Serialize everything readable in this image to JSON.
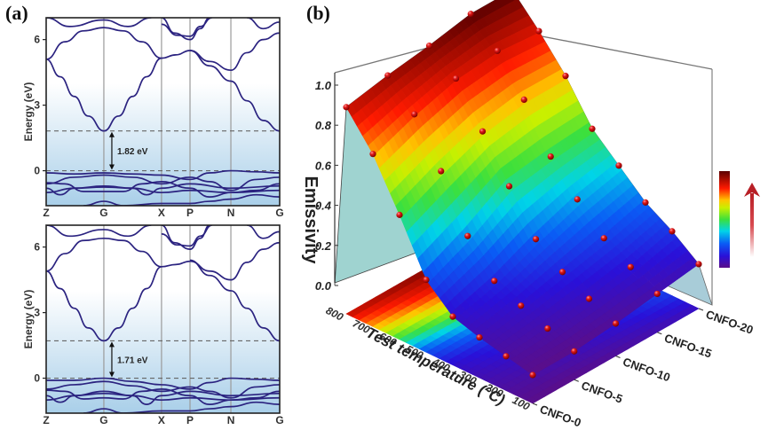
{
  "figure": {
    "panel_a_label": "(a)",
    "panel_b_label": "(b)"
  },
  "colors": {
    "band_line": "#2b2380",
    "band_bg_top": "#ffffff",
    "band_bg_bottom": "#a9cfe9",
    "kline": "#9a9a9a",
    "dash": "#666666",
    "wall": "#9fd3d0",
    "wall_right": "#a8ccd8",
    "point": "#d21c1c",
    "arrow": "#c0262b"
  },
  "chart_data": [
    {
      "type": "line",
      "id": "band-structure-top",
      "title": "",
      "ylabel": "Energy (eV)",
      "xlabel": "",
      "ylim": [
        -1.6,
        7.0
      ],
      "yticks": [
        "6",
        "3",
        "0"
      ],
      "ytick_values": [
        6,
        3,
        0
      ],
      "kpoints": [
        "Z",
        "G",
        "X",
        "P",
        "N",
        "G"
      ],
      "kpoint_positions": [
        0,
        0.247,
        0.494,
        0.616,
        0.791,
        1.0
      ],
      "band_gap_label": "1.82 eV",
      "band_gap": 1.82,
      "cbm": 1.82,
      "vbm": 0,
      "series": [
        {
          "name": "cb1",
          "x": [
            0,
            0.06,
            0.12,
            0.18,
            0.247,
            0.31,
            0.37,
            0.43,
            0.494,
            0.555,
            0.616,
            0.7,
            0.791,
            0.86,
            0.93,
            1.0
          ],
          "y": [
            5.1,
            4.3,
            3.4,
            2.5,
            1.82,
            2.5,
            3.4,
            4.3,
            5.15,
            5.3,
            5.5,
            5.0,
            4.6,
            5.4,
            6.0,
            6.3
          ]
        },
        {
          "name": "cb2",
          "x": [
            0.616,
            0.7,
            0.791,
            0.86,
            0.93,
            1.0
          ],
          "y": [
            5.5,
            4.8,
            4.1,
            3.2,
            2.3,
            1.82
          ]
        },
        {
          "name": "cb3",
          "x": [
            0,
            0.08,
            0.16,
            0.247,
            0.33,
            0.41,
            0.494
          ],
          "y": [
            5.1,
            5.9,
            6.4,
            6.55,
            6.4,
            5.9,
            5.15
          ]
        },
        {
          "name": "cb4",
          "x": [
            0.494,
            0.55,
            0.616,
            0.66,
            0.7
          ],
          "y": [
            7.0,
            6.3,
            6.0,
            6.5,
            7.0
          ]
        },
        {
          "name": "cb5",
          "x": [
            0.494,
            0.56,
            0.616,
            0.66,
            0.71
          ],
          "y": [
            6.7,
            6.2,
            6.15,
            6.6,
            7.0
          ]
        },
        {
          "name": "cb6",
          "x": [
            0.86,
            0.93,
            1.0
          ],
          "y": [
            7.0,
            6.5,
            6.8
          ]
        },
        {
          "name": "cb7",
          "x": [
            0.0,
            0.1,
            0.247,
            0.35,
            0.45
          ],
          "y": [
            7.0,
            6.6,
            6.9,
            6.6,
            7.0
          ]
        },
        {
          "name": "vb1",
          "x": [
            0,
            0.12,
            0.247,
            0.37,
            0.494,
            0.616,
            0.7,
            0.791,
            0.9,
            1.0
          ],
          "y": [
            -0.1,
            -0.15,
            -0.1,
            -0.15,
            -0.2,
            -0.4,
            -0.1,
            0.0,
            -0.05,
            -0.1
          ]
        },
        {
          "name": "vb2",
          "x": [
            0,
            0.12,
            0.247,
            0.37,
            0.494,
            0.616,
            0.7,
            0.791,
            0.9,
            1.0
          ],
          "y": [
            -0.6,
            -0.3,
            -0.2,
            -0.3,
            -0.6,
            -0.3,
            -0.5,
            -0.9,
            -0.4,
            -0.3
          ]
        },
        {
          "name": "vb3",
          "x": [
            0,
            0.06,
            0.12,
            0.247,
            0.37,
            0.43,
            0.494,
            0.616,
            0.791,
            1.0
          ],
          "y": [
            -0.8,
            -1.1,
            -0.8,
            -0.7,
            -0.8,
            -1.1,
            -0.8,
            -0.6,
            -0.8,
            -0.7
          ]
        },
        {
          "name": "vb4",
          "x": [
            0,
            0.12,
            0.247,
            0.37,
            0.494,
            0.616,
            0.791,
            1.0
          ],
          "y": [
            -1.0,
            -0.8,
            -0.75,
            -0.8,
            -1.0,
            -0.9,
            -1.0,
            -0.9
          ]
        },
        {
          "name": "vb5",
          "x": [
            0,
            0.08,
            0.16,
            0.247,
            0.33,
            0.41,
            0.494,
            0.616,
            0.7,
            0.791,
            0.9,
            1.0
          ],
          "y": [
            -0.55,
            -0.6,
            -0.95,
            -0.95,
            -0.95,
            -0.6,
            -0.5,
            -0.8,
            -1.2,
            -1.0,
            -0.9,
            -0.6
          ]
        },
        {
          "name": "vb6",
          "x": [
            0.16,
            0.247,
            0.33,
            0.494,
            0.616,
            0.7,
            0.791,
            0.9,
            1.0
          ],
          "y": [
            -1.6,
            -1.4,
            -1.6,
            -1.5,
            -1.5,
            -1.4,
            -1.3,
            -1.1,
            -1.2
          ]
        }
      ]
    },
    {
      "type": "line",
      "id": "band-structure-bottom",
      "title": "",
      "ylabel": "Energy (eV)",
      "xlabel": "",
      "ylim": [
        -1.6,
        7.0
      ],
      "yticks": [
        "6",
        "3",
        "0"
      ],
      "ytick_values": [
        6,
        3,
        0
      ],
      "kpoints": [
        "Z",
        "G",
        "X",
        "P",
        "N",
        "G"
      ],
      "kpoint_positions": [
        0,
        0.247,
        0.494,
        0.616,
        0.791,
        1.0
      ],
      "band_gap_label": "1.71 eV",
      "band_gap": 1.71,
      "cbm": 1.71,
      "vbm": 0,
      "series": [
        {
          "name": "cb1",
          "x": [
            0,
            0.06,
            0.12,
            0.18,
            0.247,
            0.31,
            0.37,
            0.43,
            0.494,
            0.555,
            0.616,
            0.7,
            0.791,
            0.86,
            0.93,
            1.0
          ],
          "y": [
            4.9,
            4.1,
            3.2,
            2.3,
            1.71,
            2.3,
            3.2,
            4.1,
            5.1,
            5.2,
            5.35,
            4.9,
            4.5,
            5.3,
            5.9,
            6.2
          ]
        },
        {
          "name": "cb2",
          "x": [
            0.616,
            0.7,
            0.791,
            0.86,
            0.93,
            1.0
          ],
          "y": [
            5.4,
            4.7,
            4.0,
            3.2,
            2.3,
            1.71
          ]
        },
        {
          "name": "cb3",
          "x": [
            0,
            0.08,
            0.16,
            0.247,
            0.33,
            0.41,
            0.494
          ],
          "y": [
            4.9,
            5.7,
            6.3,
            6.4,
            6.3,
            5.8,
            5.1
          ]
        },
        {
          "name": "cb4",
          "x": [
            0.494,
            0.55,
            0.616,
            0.66,
            0.7
          ],
          "y": [
            7.0,
            6.2,
            5.9,
            6.4,
            7.0
          ]
        },
        {
          "name": "cb5",
          "x": [
            0.494,
            0.56,
            0.616,
            0.66,
            0.71
          ],
          "y": [
            6.6,
            6.1,
            6.05,
            6.5,
            7.0
          ]
        },
        {
          "name": "cb6",
          "x": [
            0.86,
            0.93,
            1.0
          ],
          "y": [
            7.0,
            6.4,
            6.7
          ]
        },
        {
          "name": "cb7",
          "x": [
            0.0,
            0.1,
            0.247,
            0.35,
            0.45
          ],
          "y": [
            7.0,
            6.5,
            6.8,
            6.5,
            7.0
          ]
        },
        {
          "name": "vb1",
          "x": [
            0,
            0.12,
            0.247,
            0.37,
            0.494,
            0.616,
            0.7,
            0.791,
            0.9,
            1.0
          ],
          "y": [
            -0.1,
            -0.1,
            0.0,
            -0.15,
            -0.3,
            -0.5,
            -0.2,
            0.0,
            -0.05,
            -0.1
          ]
        },
        {
          "name": "vb2",
          "x": [
            0,
            0.12,
            0.247,
            0.37,
            0.494,
            0.616,
            0.7,
            0.791,
            0.9,
            1.0
          ],
          "y": [
            -0.5,
            -0.3,
            -0.15,
            -0.35,
            -0.6,
            -0.4,
            -0.6,
            -0.9,
            -0.4,
            -0.3
          ]
        },
        {
          "name": "vb3",
          "x": [
            0,
            0.06,
            0.12,
            0.247,
            0.37,
            0.43,
            0.494,
            0.616,
            0.791,
            1.0
          ],
          "y": [
            -0.8,
            -1.1,
            -0.8,
            -0.6,
            -0.8,
            -1.2,
            -0.8,
            -0.6,
            -0.8,
            -0.7
          ]
        },
        {
          "name": "vb4",
          "x": [
            0,
            0.12,
            0.247,
            0.37,
            0.494,
            0.616,
            0.791,
            1.0
          ],
          "y": [
            -1.0,
            -0.8,
            -0.7,
            -0.8,
            -1.0,
            -0.9,
            -1.0,
            -0.9
          ]
        },
        {
          "name": "vb5",
          "x": [
            0,
            0.08,
            0.16,
            0.247,
            0.33,
            0.41,
            0.494,
            0.616,
            0.7,
            0.791,
            0.9,
            1.0
          ],
          "y": [
            -0.55,
            -0.6,
            -0.95,
            -0.9,
            -0.95,
            -0.6,
            -0.5,
            -0.8,
            -1.2,
            -1.0,
            -0.9,
            -0.6
          ]
        },
        {
          "name": "vb6",
          "x": [
            0.16,
            0.247,
            0.33,
            0.494,
            0.616,
            0.7,
            0.791,
            0.9,
            1.0
          ],
          "y": [
            -1.6,
            -1.4,
            -1.6,
            -1.5,
            -1.5,
            -1.4,
            -1.3,
            -1.1,
            -1.2
          ]
        }
      ]
    },
    {
      "type": "heatmap",
      "id": "emissivity-3d-surface",
      "title": "",
      "zlabel": "Emissivity",
      "zlim": [
        0.0,
        1.0
      ],
      "zticks": [
        "0.0",
        "0.2",
        "0.4",
        "0.6",
        "0.8",
        "1.0"
      ],
      "xlabel": "Test temperature (°C)",
      "x_ticks": [
        "100",
        "200",
        "300",
        "400",
        "500",
        "600",
        "700",
        "800"
      ],
      "x_values": [
        100,
        200,
        300,
        400,
        500,
        600,
        700,
        800
      ],
      "ylabel": "",
      "y_ticks": [
        "CNFO-0",
        "CNFO-5",
        "CNFO-10",
        "CNFO-15",
        "CNFO-20"
      ],
      "colorbar": {
        "colormap": "rainbow",
        "direction": "increasing upward",
        "arrow": "up"
      },
      "contours": true,
      "values": [
        [
          0.0,
          0.03,
          0.06,
          0.1,
          0.22,
          0.48,
          0.72,
          0.89
        ],
        [
          0.0,
          0.05,
          0.1,
          0.16,
          0.32,
          0.58,
          0.8,
          0.93
        ],
        [
          0.02,
          0.08,
          0.15,
          0.25,
          0.45,
          0.66,
          0.86,
          0.96
        ],
        [
          0.05,
          0.12,
          0.2,
          0.33,
          0.48,
          0.7,
          0.88,
          1.0
        ],
        [
          0.08,
          0.18,
          0.26,
          0.38,
          0.5,
          0.7,
          0.86,
          1.0
        ]
      ],
      "values_note": "rows = CNFO-0..CNFO-20, columns = 100..800 °C; approximate emissivity read from sphere markers"
    }
  ]
}
